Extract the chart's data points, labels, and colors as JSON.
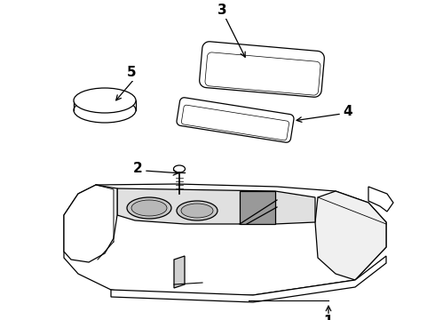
{
  "background_color": "#ffffff",
  "line_color": "#000000",
  "fig_width": 4.9,
  "fig_height": 3.6,
  "dpi": 100,
  "label_fontsize": 11,
  "label_fontweight": "bold"
}
